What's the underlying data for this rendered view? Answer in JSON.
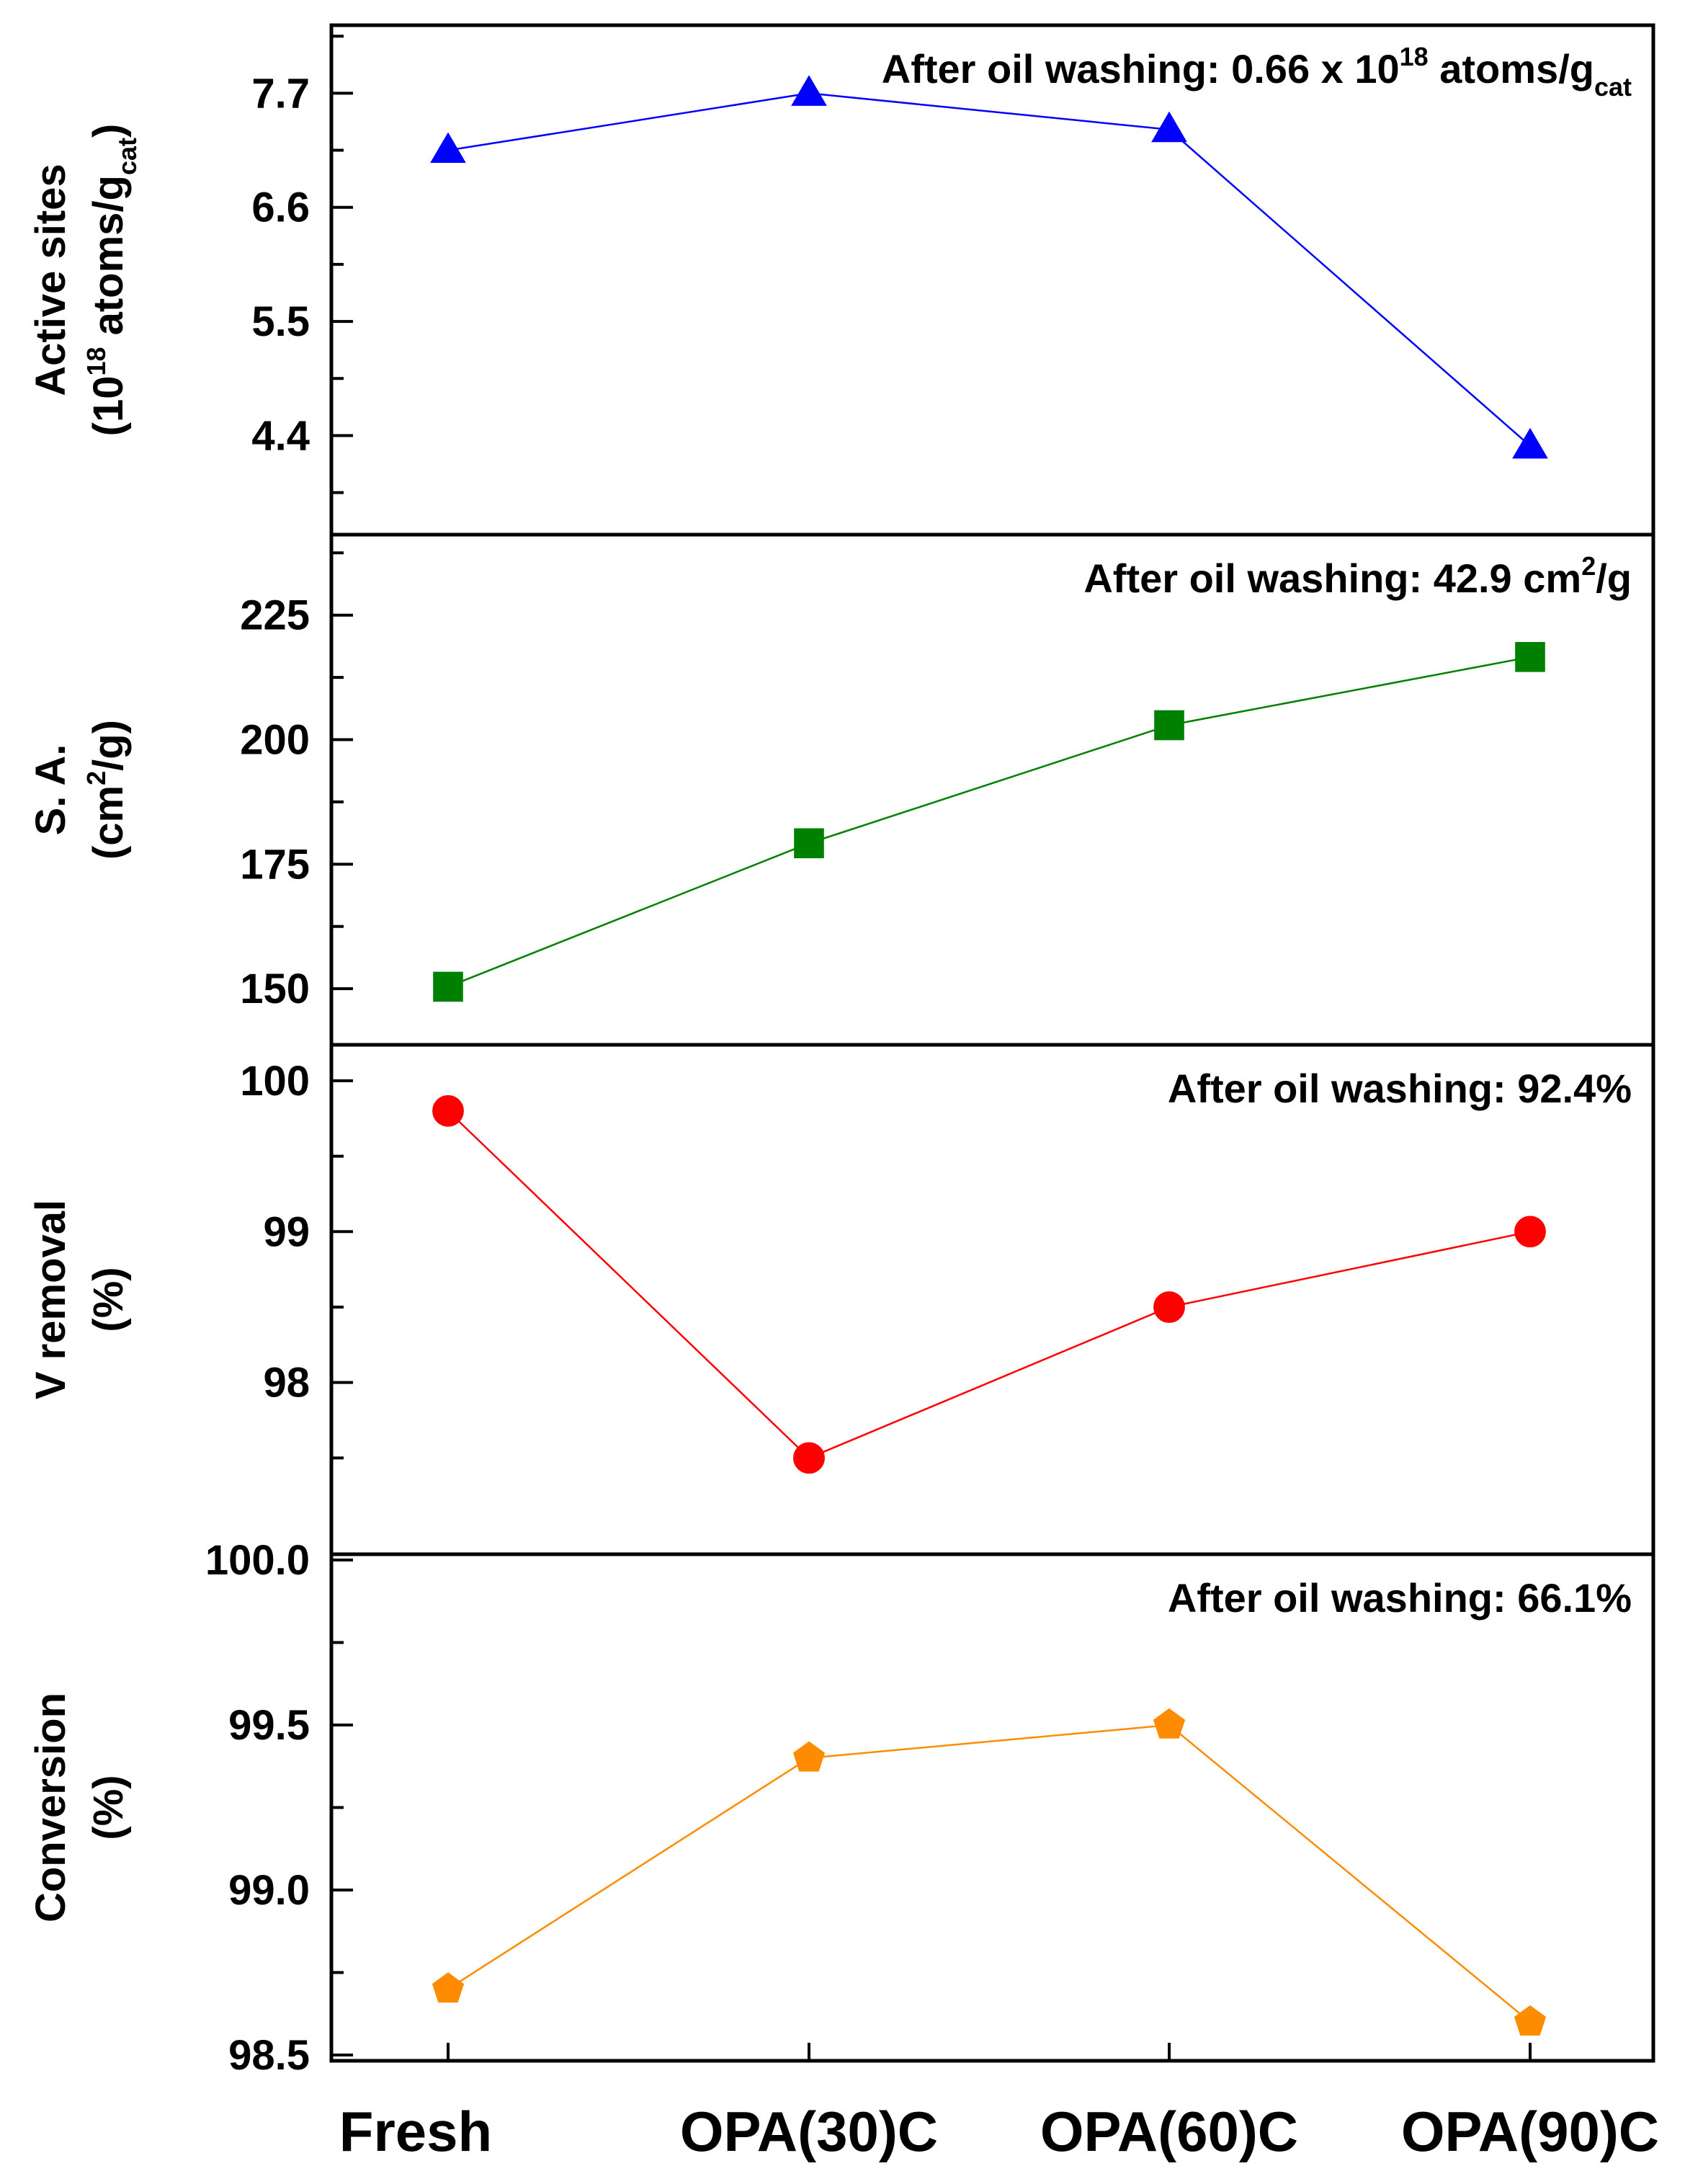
{
  "chart_data": {
    "type": "line",
    "layout": "four vertically stacked panels sharing one x axis",
    "categories": [
      "Fresh",
      "OPA(30)C",
      "OPA(60)C",
      "OPA(90)C"
    ],
    "panels": [
      {
        "id": "active",
        "ylabel_lines": [
          "Active sites",
          "(10{18} atoms/g_{cat})"
        ],
        "ylabel": "Active sites (10^18 atoms/g_cat)",
        "ylim": [
          3.5,
          8.3
        ],
        "ticks": [
          4.4,
          5.5,
          6.6,
          7.7
        ],
        "tick_labels": [
          "4.4",
          "5.5",
          "6.6",
          "7.7"
        ],
        "minor_ticks": [
          3.85,
          4.95,
          6.05,
          7.15,
          8.25
        ],
        "values": [
          7.15,
          7.7,
          7.35,
          4.3
        ],
        "marker": "triangle",
        "color": "#0000ff",
        "annotation": "After oil washing: 0.66 x 10{18} atoms/g_{cat}"
      },
      {
        "id": "sa",
        "ylabel_lines": [
          "S. A.",
          "(cm{2}/g)"
        ],
        "ylabel": "S. A. (cm2/g)",
        "ylim": [
          139.9,
          240.0
        ],
        "ticks": [
          150,
          175,
          200,
          225
        ],
        "tick_labels": [
          "150",
          "175",
          "200",
          "225"
        ],
        "minor_ticks": [
          162.5,
          187.5,
          212.5,
          237.5
        ],
        "values": [
          150.4,
          179.2,
          202.9,
          216.6
        ],
        "marker": "square",
        "color": "#008000",
        "annotation": "After oil washing: 42.9 cm{2}/g"
      },
      {
        "id": "v",
        "ylabel_lines": [
          "V removal",
          "(%)"
        ],
        "ylabel": "V removal (%)",
        "ylim": [
          96.9,
          100.2
        ],
        "ticks": [
          98,
          99,
          100
        ],
        "tick_labels": [
          "98",
          "99",
          "100"
        ],
        "minor_ticks": [
          97.5,
          98.5,
          99.5
        ],
        "values": [
          99.8,
          97.5,
          98.5,
          99.0
        ],
        "marker": "circle",
        "color": "#ff0000",
        "annotation": "After oil washing: 92.4%"
      },
      {
        "id": "conv",
        "ylabel_lines": [
          "Conversion",
          "(%)"
        ],
        "ylabel": "Conversion (%)",
        "ylim": [
          98.5,
          100.0
        ],
        "ticks": [
          98.5,
          99.0,
          99.5,
          100.0
        ],
        "tick_labels": [
          "98.5",
          "99.0",
          "99.5",
          "100.0"
        ],
        "minor_ticks": [
          98.75,
          99.25,
          99.75
        ],
        "values": [
          98.7,
          99.4,
          99.5,
          98.6
        ],
        "marker": "pentagon",
        "color": "#ff8c00",
        "annotation": "After oil washing: 66.1%"
      }
    ]
  }
}
